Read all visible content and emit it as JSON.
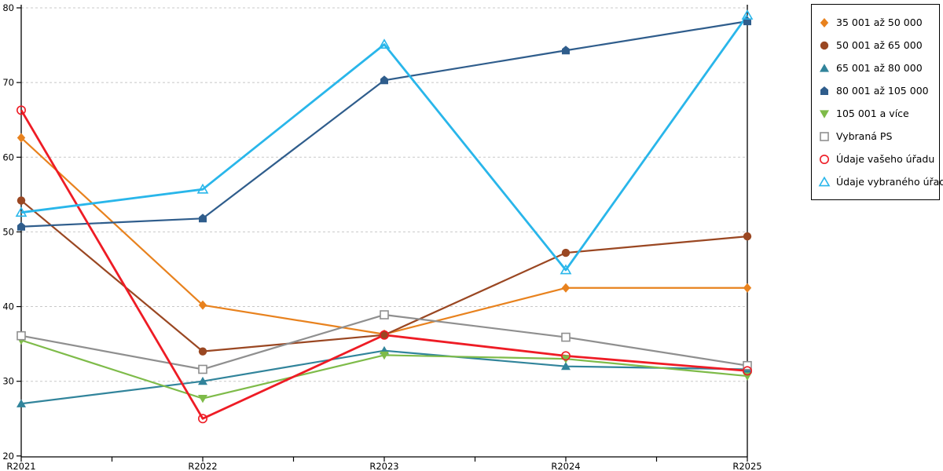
{
  "chart_data": {
    "type": "line",
    "title": "",
    "xlabel": "",
    "ylabel": "",
    "categories": [
      "R2021",
      "R2022",
      "R2023",
      "R2024",
      "R2025"
    ],
    "ylim": [
      20,
      80
    ],
    "yticks": [
      20,
      30,
      40,
      50,
      60,
      70,
      80
    ],
    "grid": "horizontal-dashed",
    "gridline_color": "#c8c8c8",
    "axis_color": "#000000",
    "legend_position": "outside-top-right",
    "series": [
      {
        "name": "35 001 až 50 000",
        "marker": "diamond",
        "filled": true,
        "color": "#E8821E",
        "line_width": 2.2,
        "values": [
          62.6,
          40.2,
          36.3,
          42.5,
          42.5
        ]
      },
      {
        "name": "50 001 až 65 000",
        "marker": "circle",
        "filled": true,
        "color": "#9A4722",
        "line_width": 2.2,
        "values": [
          54.2,
          34.0,
          36.2,
          47.2,
          49.4
        ]
      },
      {
        "name": "65 001 až 80 000",
        "marker": "triangle-up",
        "filled": true,
        "color": "#31849B",
        "line_width": 2.2,
        "values": [
          27.0,
          30.0,
          34.1,
          32.0,
          31.6
        ]
      },
      {
        "name": "80 001 až 105 000",
        "marker": "pentagon",
        "filled": true,
        "color": "#2F5D8C",
        "line_width": 2.2,
        "values": [
          50.7,
          51.8,
          70.3,
          74.3,
          78.2
        ]
      },
      {
        "name": "105 001 a více",
        "marker": "triangle-down",
        "filled": true,
        "color": "#7EBB49",
        "line_width": 2.2,
        "values": [
          35.5,
          27.7,
          33.5,
          33.0,
          30.7
        ]
      },
      {
        "name": "Vybraná PS",
        "marker": "square",
        "filled": false,
        "color": "#8F8F8F",
        "line_width": 2.2,
        "values": [
          36.1,
          31.6,
          38.9,
          35.9,
          32.1
        ]
      },
      {
        "name": "Údaje vašeho úřadu",
        "marker": "circle",
        "filled": false,
        "color": "#EE1C25",
        "line_width": 2.8,
        "values": [
          66.3,
          25.0,
          36.2,
          33.4,
          31.4
        ]
      },
      {
        "name": "Údaje vybraného úřadu",
        "marker": "triangle-up",
        "filled": false,
        "color": "#29B6EA",
        "line_width": 2.8,
        "values": [
          52.6,
          55.7,
          75.1,
          44.9,
          79.0
        ]
      }
    ]
  }
}
